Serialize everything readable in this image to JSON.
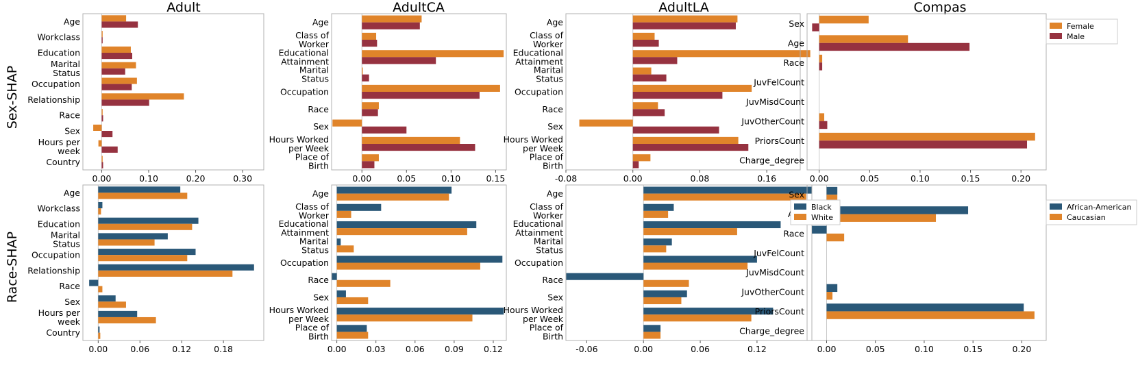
{
  "row_labels": [
    "Sex-SHAP",
    "Race-SHAP"
  ],
  "colors": {
    "orange": "#E0842A",
    "crimson": "#963240",
    "navy": "#2A5878",
    "axis": "#b0b0b0"
  },
  "legends": {
    "sex": [
      "Female",
      "Male"
    ],
    "race_ca": [
      "Black",
      "White"
    ],
    "compas_race": [
      "African-American",
      "Caucasian"
    ]
  },
  "chart_data": [
    {
      "type": "bar",
      "orientation": "horizontal",
      "row": "Sex-SHAP",
      "title": "Adult",
      "categories": [
        [
          "Age"
        ],
        [
          "Workclass"
        ],
        [
          "Education"
        ],
        [
          "Marital",
          "Status"
        ],
        [
          "Occupation"
        ],
        [
          "Relationship"
        ],
        [
          "Race"
        ],
        [
          "Sex"
        ],
        [
          "Hours per",
          "week"
        ],
        [
          "Country"
        ]
      ],
      "xlim": [
        -0.04,
        0.345
      ],
      "xticks": [
        "0.00",
        "0.10",
        "0.20",
        "0.30"
      ],
      "xtick_values": [
        0,
        0.1,
        0.2,
        0.3
      ],
      "series": [
        {
          "name": "Female",
          "color": "#E0842A",
          "values": [
            0.052,
            0.002,
            0.062,
            0.073,
            0.075,
            0.175,
            0.002,
            -0.018,
            -0.007,
            0.002
          ]
        },
        {
          "name": "Male",
          "color": "#963240",
          "values": [
            0.077,
            0.002,
            0.065,
            0.05,
            0.064,
            0.101,
            0.003,
            0.023,
            0.034,
            0.003
          ]
        }
      ]
    },
    {
      "type": "bar",
      "orientation": "horizontal",
      "row": "Sex-SHAP",
      "title": "AdultCA",
      "categories": [
        [
          "Age"
        ],
        [
          "Class of",
          "Worker"
        ],
        [
          "Educational",
          "Attainment"
        ],
        [
          "Marital",
          "Status"
        ],
        [
          "Occupation"
        ],
        [
          "Race"
        ],
        [
          "Sex"
        ],
        [
          "Hours Worked",
          "per Week"
        ],
        [
          "Place of",
          "Birth"
        ]
      ],
      "xlim": [
        -0.034,
        0.162
      ],
      "xticks": [
        "0.00",
        "0.05",
        "0.10",
        "0.15"
      ],
      "xtick_values": [
        0,
        0.05,
        0.1,
        0.15
      ],
      "series": [
        {
          "name": "Female",
          "color": "#E0842A",
          "values": [
            0.067,
            0.016,
            0.159,
            0.001,
            0.155,
            0.019,
            -0.033,
            0.11,
            0.019
          ]
        },
        {
          "name": "Male",
          "color": "#963240",
          "values": [
            0.065,
            0.017,
            0.083,
            0.008,
            0.132,
            0.018,
            0.05,
            0.127,
            0.014
          ]
        }
      ]
    },
    {
      "type": "bar",
      "orientation": "horizontal",
      "row": "Sex-SHAP",
      "title": "AdultLA",
      "categories": [
        [
          "Age"
        ],
        [
          "Class of",
          "Worker"
        ],
        [
          "Educational",
          "Attainment"
        ],
        [
          "Marital",
          "Status"
        ],
        [
          "Occupation"
        ],
        [
          "Race"
        ],
        [
          "Sex"
        ],
        [
          "Hours Worked",
          "per Week"
        ],
        [
          "Place of",
          "Birth"
        ]
      ],
      "xlim": [
        -0.08,
        0.2
      ],
      "xticks": [
        "-0.08",
        "0.00",
        "0.08",
        "0.16"
      ],
      "xtick_values": [
        -0.08,
        0,
        0.08,
        0.16
      ],
      "series": [
        {
          "name": "Female",
          "color": "#E0842A",
          "values": [
            0.125,
            0.026,
            0.212,
            0.022,
            0.142,
            0.03,
            -0.064,
            0.126,
            0.021
          ]
        },
        {
          "name": "Male",
          "color": "#963240",
          "values": [
            0.123,
            0.031,
            0.053,
            0.04,
            0.107,
            0.038,
            0.103,
            0.138,
            0.007
          ]
        }
      ]
    },
    {
      "type": "bar",
      "orientation": "horizontal",
      "row": "Sex-SHAP",
      "title": "Compas",
      "categories": [
        [
          "Sex"
        ],
        [
          "Age"
        ],
        [
          "Race"
        ],
        [
          "JuvFelCount"
        ],
        [
          "JuvMisdCount"
        ],
        [
          "JuvOtherCount"
        ],
        [
          "PriorsCount"
        ],
        [
          "Charge_degree"
        ]
      ],
      "xlim": [
        -0.012,
        0.225
      ],
      "xticks": [
        "0.00",
        "0.05",
        "0.10",
        "0.15",
        "0.20"
      ],
      "xtick_values": [
        0,
        0.05,
        0.1,
        0.15,
        0.2
      ],
      "series": [
        {
          "name": "Female",
          "color": "#E0842A",
          "values": [
            0.049,
            0.088,
            0.003,
            0,
            0,
            0.005,
            0.214,
            0
          ]
        },
        {
          "name": "Male",
          "color": "#963240",
          "values": [
            -0.007,
            0.149,
            0.003,
            0,
            0,
            0.008,
            0.206,
            0
          ]
        }
      ]
    },
    {
      "type": "bar",
      "orientation": "horizontal",
      "row": "Race-SHAP",
      "title": "",
      "categories": [
        [
          "Age"
        ],
        [
          "Workclass"
        ],
        [
          "Education"
        ],
        [
          "Marital",
          "Status"
        ],
        [
          "Occupation"
        ],
        [
          "Relationship"
        ],
        [
          "Race"
        ],
        [
          "Sex"
        ],
        [
          "Hours per",
          "week"
        ],
        [
          "Country"
        ]
      ],
      "xlim": [
        -0.022,
        0.238
      ],
      "xticks": [
        "0.00",
        "0.06",
        "0.12",
        "0.18"
      ],
      "xtick_values": [
        0,
        0.06,
        0.12,
        0.18
      ],
      "series": [
        {
          "name": "Black",
          "color": "#2A5878",
          "values": [
            0.118,
            0.006,
            0.144,
            0.1,
            0.14,
            0.224,
            -0.013,
            0.025,
            0.056,
            0.002
          ]
        },
        {
          "name": "White",
          "color": "#E0842A",
          "values": [
            0.128,
            0.004,
            0.135,
            0.081,
            0.128,
            0.193,
            0.006,
            0.04,
            0.083,
            0.003
          ]
        }
      ]
    },
    {
      "type": "bar",
      "orientation": "horizontal",
      "row": "Race-SHAP",
      "title": "",
      "categories": [
        [
          "Age"
        ],
        [
          "Class of",
          "Worker"
        ],
        [
          "Educational",
          "Attainment"
        ],
        [
          "Marital",
          "Status"
        ],
        [
          "Occupation"
        ],
        [
          "Race"
        ],
        [
          "Sex"
        ],
        [
          "Hours Worked",
          "per Week"
        ],
        [
          "Place of",
          "Birth"
        ]
      ],
      "xlim": [
        -0.004,
        0.13
      ],
      "xticks": [
        "0.00",
        "0.03",
        "0.06",
        "0.09",
        "0.12"
      ],
      "xtick_values": [
        0,
        0.03,
        0.06,
        0.09,
        0.12
      ],
      "series": [
        {
          "name": "Black",
          "color": "#2A5878",
          "values": [
            0.088,
            0.034,
            0.107,
            0.003,
            0.127,
            -0.004,
            0.007,
            0.128,
            0.023
          ]
        },
        {
          "name": "White",
          "color": "#E0842A",
          "values": [
            0.086,
            0.011,
            0.1,
            0.013,
            0.11,
            0.041,
            0.024,
            0.104,
            0.024
          ]
        }
      ]
    },
    {
      "type": "bar",
      "orientation": "horizontal",
      "row": "Race-SHAP",
      "title": "",
      "categories": [
        [
          "Age"
        ],
        [
          "Class of",
          "Worker"
        ],
        [
          "Educational",
          "Attainment"
        ],
        [
          "Marital",
          "Status"
        ],
        [
          "Occupation"
        ],
        [
          "Race"
        ],
        [
          "Sex"
        ],
        [
          "Hours Worked",
          "per Week"
        ],
        [
          "Place of",
          "Birth"
        ]
      ],
      "xlim": [
        -0.082,
        0.178
      ],
      "xticks": [
        "-0.06",
        "0.00",
        "0.06",
        "0.12"
      ],
      "xtick_values": [
        -0.06,
        0,
        0.06,
        0.12
      ],
      "series": [
        {
          "name": "Black",
          "color": "#2A5878",
          "values": [
            0.178,
            0.032,
            0.145,
            0.03,
            0.12,
            -0.082,
            0.046,
            0.137,
            0.018
          ]
        },
        {
          "name": "White",
          "color": "#E0842A",
          "values": [
            0.172,
            0.026,
            0.099,
            0.024,
            0.11,
            0.048,
            0.04,
            0.114,
            0.018
          ]
        }
      ]
    },
    {
      "type": "bar",
      "orientation": "horizontal",
      "row": "Race-SHAP",
      "title": "",
      "categories": [
        [
          "Sex"
        ],
        [
          "Age"
        ],
        [
          "Race"
        ],
        [
          "JuvFelCount"
        ],
        [
          "JuvMisdCount"
        ],
        [
          "JuvOtherCount"
        ],
        [
          "PriorsCount"
        ],
        [
          "Charge_degree"
        ]
      ],
      "xlim": [
        -0.02,
        0.225
      ],
      "xticks": [
        "0.00",
        "0.05",
        "0.10",
        "0.15",
        "0.20"
      ],
      "xtick_values": [
        0,
        0.05,
        0.1,
        0.15,
        0.2
      ],
      "series": [
        {
          "name": "African-American",
          "color": "#2A5878",
          "values": [
            0.011,
            0.145,
            -0.015,
            0,
            0,
            0.011,
            0.202,
            0
          ]
        },
        {
          "name": "Caucasian",
          "color": "#E0842A",
          "values": [
            0.011,
            0.112,
            0.018,
            0,
            0,
            0.006,
            0.213,
            0
          ]
        }
      ]
    }
  ]
}
